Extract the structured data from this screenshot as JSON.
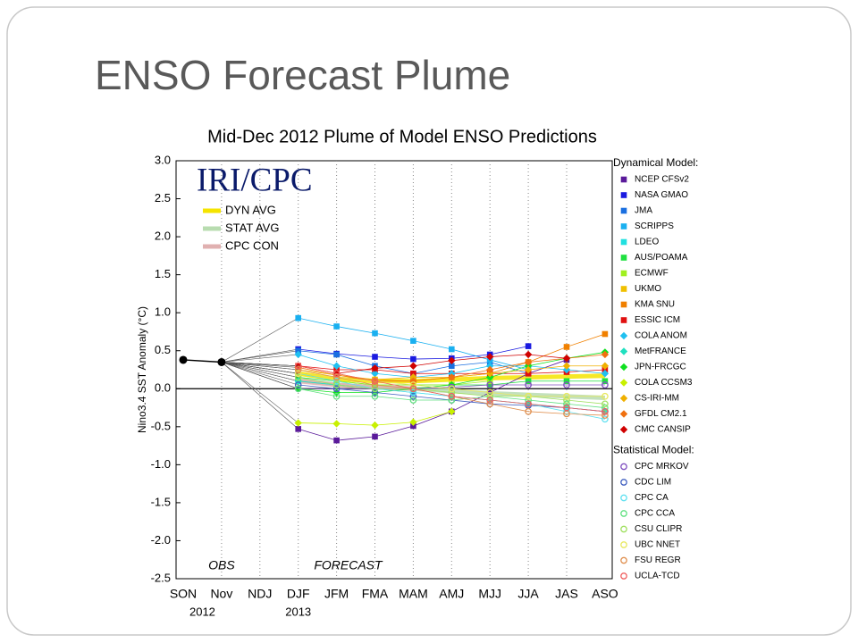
{
  "slide_title": "ENSO Forecast Plume",
  "chart_data": {
    "type": "line",
    "title": "Mid-Dec 2012 Plume of Model ENSO Predictions",
    "y_label": "Nino3.4 SST Anomaly (°C)",
    "categories": [
      "SON",
      "Nov",
      "NDJ",
      "DJF",
      "JFM",
      "FMA",
      "MAM",
      "AMJ",
      "MJJ",
      "JJA",
      "JAS",
      "ASO"
    ],
    "year_labels": [
      "2012",
      "2013"
    ],
    "ylim": [
      -2.5,
      3
    ],
    "yticks": [
      {
        "value": 3,
        "label": "3.0"
      },
      2.5,
      {
        "value": 2,
        "label": "2.0"
      },
      1.5,
      {
        "value": 1,
        "label": "1.0"
      },
      0.5,
      {
        "value": 0,
        "label": "0.0"
      },
      -0.5,
      {
        "value": -1,
        "label": "-1.0"
      },
      -1.5,
      {
        "value": -2,
        "label": "-2.0"
      },
      -2.5
    ],
    "grid": true,
    "watermark": "IRI/CPC",
    "forecast_label": "FORECAST",
    "obs": {
      "name": "OBS",
      "color": "#000000",
      "values": [
        0.38,
        0.35,
        null,
        null,
        null,
        null,
        null,
        null,
        null,
        null,
        null,
        null
      ]
    },
    "averages": [
      {
        "name": "DYN AVG",
        "color": "#f5e400",
        "values": [
          null,
          null,
          null,
          0.2,
          0.13,
          0.1,
          0.1,
          0.12,
          0.14,
          0.15,
          0.16,
          0.17
        ]
      },
      {
        "name": "STAT AVG",
        "color": "#b8dcb0",
        "values": [
          null,
          null,
          null,
          0.12,
          0.05,
          0.02,
          0.0,
          -0.03,
          -0.06,
          -0.08,
          -0.1,
          -0.12
        ]
      },
      {
        "name": "CPC CON",
        "color": "#e0b0b0",
        "values": [
          null,
          null,
          null,
          0.1,
          0.05,
          0.02,
          0.0,
          null,
          null,
          null,
          null,
          null
        ]
      }
    ],
    "groups": [
      {
        "title": "Dynamical Model:",
        "series": [
          {
            "name": "NCEP CFSv2",
            "color": "#5a1a9a",
            "marker": "square",
            "values": [
              null,
              null,
              null,
              -0.53,
              -0.68,
              -0.63,
              -0.49,
              -0.3,
              -0.05,
              0.2,
              0.38,
              null
            ]
          },
          {
            "name": "NASA GMAO",
            "color": "#1a1ae0",
            "marker": "square",
            "values": [
              null,
              null,
              null,
              0.52,
              0.46,
              0.42,
              0.39,
              0.4,
              0.45,
              0.56,
              null,
              null
            ]
          },
          {
            "name": "JMA",
            "color": "#1a6fe0",
            "marker": "square",
            "values": [
              null,
              null,
              null,
              0.5,
              0.45,
              0.3,
              0.2,
              0.3,
              0.35,
              0.2,
              null,
              null
            ]
          },
          {
            "name": "SCRIPPS",
            "color": "#1ab0f0",
            "marker": "square",
            "values": [
              null,
              null,
              null,
              0.93,
              0.82,
              0.73,
              0.63,
              0.52,
              0.38,
              0.25,
              null,
              null
            ]
          },
          {
            "name": "LDEO",
            "color": "#20e0e0",
            "marker": "square",
            "values": [
              null,
              null,
              null,
              0.1,
              0.05,
              0.0,
              -0.05,
              -0.1,
              -0.15,
              -0.2,
              -0.25,
              -0.3
            ]
          },
          {
            "name": "AUS/POAMA",
            "color": "#20e040",
            "marker": "square",
            "values": [
              null,
              null,
              null,
              0.15,
              0.1,
              0.05,
              0.05,
              0.05,
              0.05,
              0.1,
              0.1,
              0.1
            ]
          },
          {
            "name": "ECMWF",
            "color": "#a0f020",
            "marker": "square",
            "values": [
              null,
              null,
              null,
              0.2,
              0.1,
              0.05,
              0.05,
              0.05,
              0.1,
              null,
              null,
              null
            ]
          },
          {
            "name": "UKMO",
            "color": "#f0c000",
            "marker": "square",
            "values": [
              null,
              null,
              null,
              0.25,
              0.18,
              0.12,
              0.1,
              null,
              null,
              null,
              null,
              null
            ]
          },
          {
            "name": "KMA SNU",
            "color": "#f08000",
            "marker": "square",
            "values": [
              null,
              null,
              null,
              0.3,
              0.2,
              0.1,
              0.1,
              0.15,
              0.2,
              0.35,
              0.55,
              0.72
            ]
          },
          {
            "name": "ESSIC ICM",
            "color": "#e01010",
            "marker": "square",
            "values": [
              null,
              null,
              null,
              0.3,
              0.25,
              0.25,
              0.2,
              0.2,
              0.2,
              0.2,
              0.22,
              0.25
            ]
          },
          {
            "name": "COLA ANOM",
            "color": "#20c0f0",
            "marker": "diamond",
            "values": [
              null,
              null,
              null,
              0.45,
              0.3,
              0.2,
              0.15,
              0.2,
              0.3,
              0.3,
              0.25,
              0.2
            ]
          },
          {
            "name": "MetFRANCE",
            "color": "#20e0c0",
            "marker": "diamond",
            "values": [
              null,
              null,
              null,
              0.1,
              0.05,
              0.0,
              null,
              null,
              null,
              null,
              null,
              null
            ]
          },
          {
            "name": "JPN-FRCGC",
            "color": "#10e020",
            "marker": "diamond",
            "values": [
              null,
              null,
              null,
              0.0,
              -0.05,
              -0.05,
              0.0,
              0.05,
              0.15,
              0.3,
              0.4,
              0.48
            ]
          },
          {
            "name": "COLA CCSM3",
            "color": "#c8f000",
            "marker": "diamond",
            "values": [
              null,
              null,
              null,
              -0.45,
              -0.46,
              -0.48,
              -0.44,
              -0.3,
              null,
              null,
              null,
              null
            ]
          },
          {
            "name": "CS-IRI-MM",
            "color": "#f0b000",
            "marker": "diamond",
            "values": [
              null,
              null,
              null,
              0.2,
              0.15,
              0.12,
              0.15,
              0.15,
              0.2,
              0.25,
              0.3,
              0.3
            ]
          },
          {
            "name": "GFDL CM2.1",
            "color": "#f07010",
            "marker": "diamond",
            "values": [
              null,
              null,
              null,
              0.28,
              0.18,
              0.1,
              0.1,
              0.15,
              0.25,
              0.35,
              0.4,
              0.45
            ]
          },
          {
            "name": "CMC CANSIP",
            "color": "#d00000",
            "marker": "diamond",
            "values": [
              null,
              null,
              null,
              0.3,
              0.2,
              0.27,
              0.3,
              0.37,
              0.42,
              0.45,
              0.4,
              null
            ]
          }
        ]
      },
      {
        "title": "Statistical Model:",
        "series": [
          {
            "name": "CPC MRKOV",
            "color": "#8050c0",
            "marker": "circle",
            "values": [
              null,
              null,
              null,
              0.0,
              0.0,
              0.0,
              0.0,
              0.02,
              0.05,
              0.05,
              0.05,
              0.05
            ]
          },
          {
            "name": "CDC LIM",
            "color": "#4060c0",
            "marker": "circle",
            "values": [
              null,
              null,
              null,
              0.05,
              0.0,
              -0.05,
              -0.1,
              -0.15,
              -0.2,
              -0.22,
              -0.25,
              -0.3
            ]
          },
          {
            "name": "CPC CA",
            "color": "#60e0f0",
            "marker": "circle",
            "values": [
              null,
              null,
              null,
              0.2,
              0.1,
              0.0,
              -0.05,
              -0.1,
              -0.15,
              -0.2,
              -0.3,
              -0.4
            ]
          },
          {
            "name": "CPC CCA",
            "color": "#60e080",
            "marker": "circle",
            "values": [
              null,
              null,
              null,
              0.0,
              -0.1,
              -0.1,
              -0.15,
              -0.15,
              -0.1,
              -0.15,
              -0.2,
              -0.25
            ]
          },
          {
            "name": "CSU CLIPR",
            "color": "#a0e060",
            "marker": "circle",
            "values": [
              null,
              null,
              null,
              0.15,
              0.05,
              0.0,
              0.0,
              -0.05,
              -0.1,
              -0.1,
              -0.15,
              -0.2
            ]
          },
          {
            "name": "UBC NNET",
            "color": "#e8e860",
            "marker": "circle",
            "values": [
              null,
              null,
              null,
              0.2,
              0.15,
              0.1,
              0.05,
              0.0,
              -0.05,
              -0.1,
              -0.1,
              -0.1
            ]
          },
          {
            "name": "FSU REGR",
            "color": "#e09050",
            "marker": "circle",
            "values": [
              null,
              null,
              null,
              0.25,
              0.15,
              0.05,
              0.0,
              -0.1,
              -0.2,
              -0.3,
              -0.33,
              -0.35
            ]
          },
          {
            "name": "UCLA-TCD",
            "color": "#f06060",
            "marker": "circle",
            "values": [
              null,
              null,
              null,
              0.3,
              0.2,
              0.1,
              0.0,
              -0.1,
              -0.15,
              -0.2,
              -0.25,
              -0.3
            ]
          }
        ]
      }
    ]
  }
}
